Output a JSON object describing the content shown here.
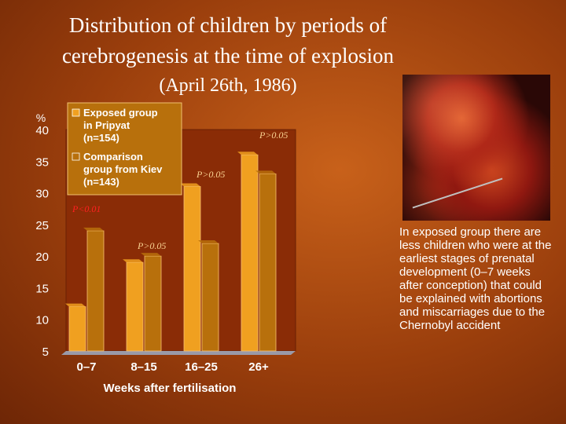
{
  "slide": {
    "title_line1": "Distribution of children by periods of",
    "title_line2": "cerebrogenesis at the time of explosion",
    "title_line3": "(April 26th, 1986)",
    "side_text": "In exposed group there are less children who were at the earliest stages of prenatal development (0–7 weeks after conception) that could be explained with abortions and miscarriages due to the Chernobyl accident"
  },
  "chart_data": {
    "type": "bar",
    "categories": [
      "0–7",
      "8–15",
      "16–25",
      "26+"
    ],
    "series": [
      {
        "name": "Exposed group in Pripyat (n=154)",
        "values": [
          12,
          19,
          31,
          36
        ],
        "color": "#f0a020"
      },
      {
        "name": "Comparison group from Kiev (n=143)",
        "values": [
          24,
          20,
          22,
          33
        ],
        "color": "#b8700c"
      }
    ],
    "xlabel": "Weeks after fertilisation",
    "ylabel": "%",
    "ylim": [
      5,
      40
    ],
    "yticks": [
      5,
      10,
      15,
      20,
      25,
      30,
      35,
      40
    ],
    "legend_placement": "top-left",
    "annotations": [
      "P<0.01",
      "P>0.05",
      "P>0.05",
      "P>0.05"
    ]
  }
}
